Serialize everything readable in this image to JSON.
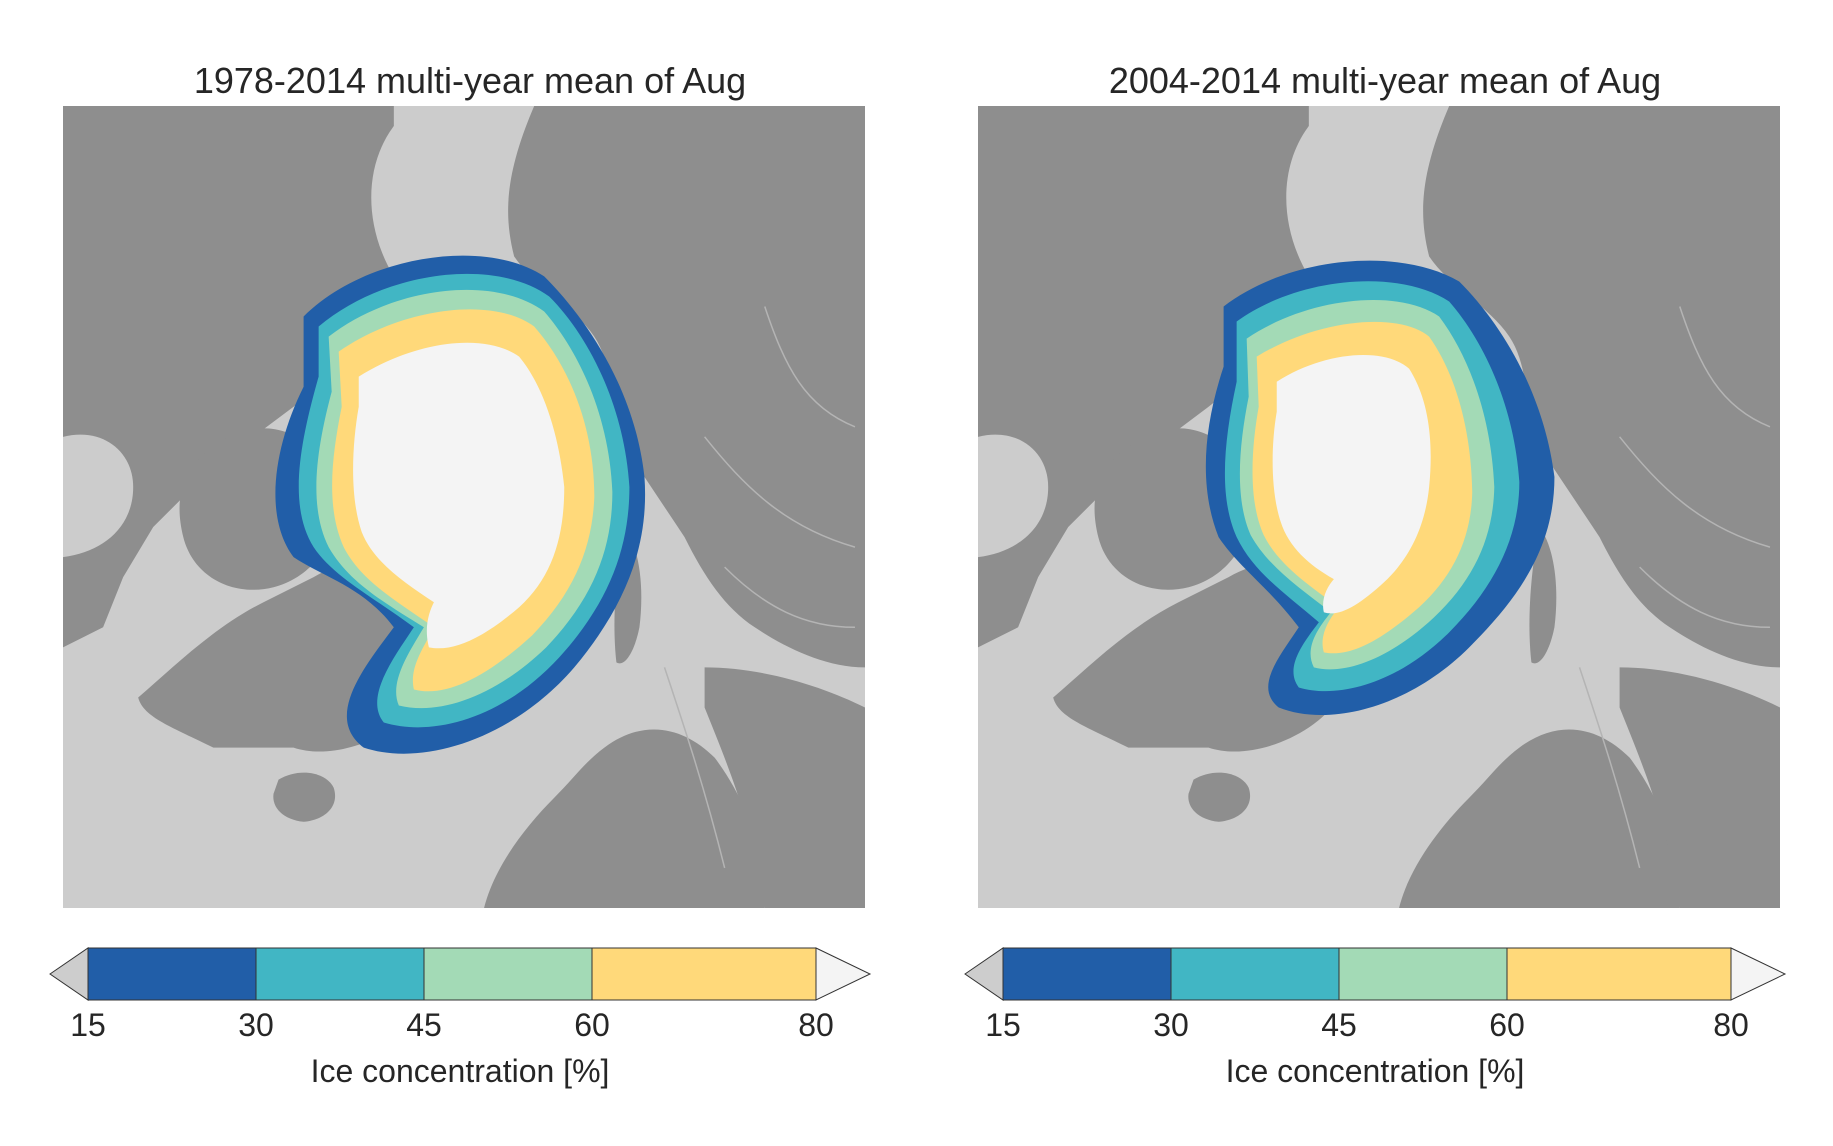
{
  "colors": {
    "ocean": "#cccccc",
    "land": "#8e8e8e",
    "river": "#b4b4b4",
    "under15": "#cdcdcd",
    "c15_30": "#215ea8",
    "c30_45": "#41b6c4",
    "c45_60": "#a3dab6",
    "c60_80": "#ffd97a",
    "over80": "#f4f4f4"
  },
  "maps": [
    {
      "title": "1978-2014 multi-year mean of Aug",
      "variant": "full"
    },
    {
      "title": "2004-2014 multi-year mean of Aug",
      "variant": "recent"
    }
  ],
  "colorbar": {
    "label": "Ice concentration [%]",
    "ticks": [
      "15",
      "30",
      "45",
      "60",
      "80"
    ],
    "levels": [
      15,
      30,
      45,
      60,
      80
    ],
    "extend": "both"
  }
}
